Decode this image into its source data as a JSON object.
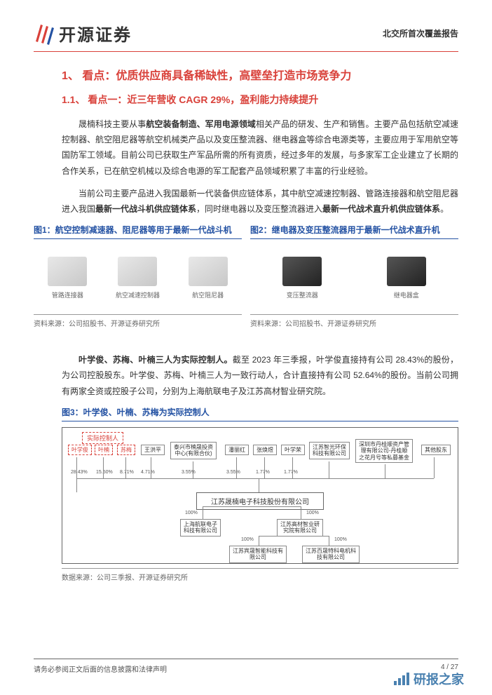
{
  "header": {
    "company_name": "开源证券",
    "report_type": "北交所首次覆盖报告",
    "logo_color_primary": "#d9413a",
    "logo_color_secondary": "#2452a3"
  },
  "section1": {
    "title": "1、 看点：优质供应商具备稀缺性，高壁垒打造市场竞争力"
  },
  "section1_1": {
    "title": "1.1、 看点一：近三年营收 CAGR 29%，盈利能力持续提升",
    "para1_a": "晟楠科技主要从事",
    "para1_b": "航空装备制造、军用电源领域",
    "para1_c": "相关产品的研发、生产和销售。主要产品包括航空减速控制器、航空阻尼器等航空机械类产品以及变压整流器、继电器盒等综合电源类等，主要应用于军用航空等国防军工领域。目前公司已获取生产军品所需的所有资质，经过多年的发展，与多家军工企业建立了长期的合作关系，已在航空机械以及综合电源的军工配套产品领域积累了丰富的行业经验。",
    "para2_a": "当前公司主要产品进入我国最新一代装备供应链体系，其中航空减速控制器、管路连接器和航空阻尼器进入我国",
    "para2_b": "最新一代战斗机供应链体系",
    "para2_c": "，同时继电器以及变压整流器进入",
    "para2_d": "最新一代战术直升机供应链体系",
    "para2_e": "。"
  },
  "fig1": {
    "title": "图1：航空控制减速器、阻尼器等用于最新一代战斗机",
    "items": [
      "管路连接器",
      "航空减速控制器",
      "航空阻尼器"
    ],
    "source": "资料来源：公司招股书、开源证券研究所"
  },
  "fig2": {
    "title": "图2：继电器及变压整流器用于最新一代战术直升机",
    "items": [
      "变压整流器",
      "继电器盒"
    ],
    "source": "资料来源：公司招股书、开源证券研究所"
  },
  "para3": {
    "a": "叶学俊、苏梅、叶楠三人为实际控制人。",
    "b": "截至 2023 年三季报，叶学俊直接持有公司 28.43%的股份，为公司控股股东。叶学俊、苏梅、叶楠三人为一致行动人，合计直接持有公司 52.64%的股份。当前公司拥有两家全资或控股子公司，分别为上海航联电子及江苏高材智业研究院。"
  },
  "fig3": {
    "title": "图3：叶学俊、叶楠、苏梅为实际控制人",
    "controller_label": "实际控制人",
    "top_nodes": {
      "n1": "叶学俊",
      "n2": "叶楠",
      "n3": "苏梅",
      "n4": "王洪平",
      "n5": "泰兴市楠晟投资\n中心(有限合伙)",
      "n6": "潘丽红",
      "n7": "张焕煜",
      "n8": "叶学荣",
      "n9": "江苏智光环保\n科技有限公司",
      "n10": "深圳市丹桂顺资产管\n理有限公司-丹桂顺\n之花月号等私募基金",
      "n11": "其他股东"
    },
    "percentages": [
      "28.43%",
      "15.50%",
      "8.71%",
      "4.71%",
      "3.55%",
      "3.55%",
      "1.77%",
      "1.77%"
    ],
    "main_company": "江苏晟楠电子科技股份有限公司",
    "sub_pct": [
      "100%",
      "100%"
    ],
    "sub1": "上海航联电子\n科技有限公司",
    "sub2": "江苏高材智业研\n究院有限公司",
    "grandsub_pct": [
      "100%",
      "100%"
    ],
    "grandsub1": "江苏宾晟智能科技有\n限公司",
    "grandsub2": "江苏百晟特科电机科\n技有限公司",
    "source": "数据来源：公司三季报、开源证券研究所"
  },
  "footer": {
    "disclaimer": "请务必参阅正文后面的信息披露和法律声明",
    "page": "4 / 27"
  },
  "watermark": {
    "text": "研报之家",
    "color": "#2b6ca3"
  }
}
